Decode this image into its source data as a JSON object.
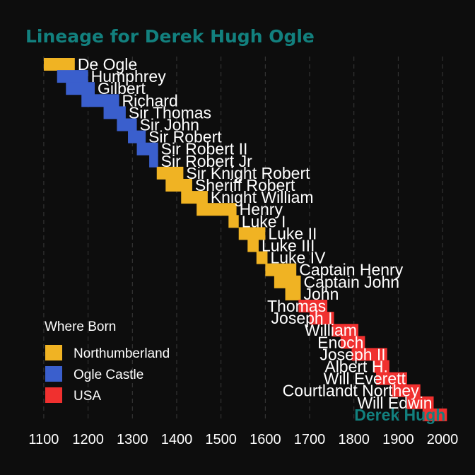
{
  "chart_data": {
    "type": "bar",
    "title": "Lineage for Derek Hugh Ogle",
    "xlabel": "",
    "ylabel": "",
    "xlim": [
      1065,
      2035
    ],
    "x_ticks": [
      1100,
      1200,
      1300,
      1400,
      1500,
      1600,
      1700,
      1800,
      1900,
      2000
    ],
    "grid": true,
    "legend": {
      "title": "Where Born",
      "position": "bottom-left",
      "entries": [
        {
          "label": "Northumberland",
          "color": "#f0b323"
        },
        {
          "label": "Ogle Castle",
          "color": "#3a5fcd"
        },
        {
          "label": "USA",
          "color": "#f0302f"
        }
      ]
    },
    "series": [
      {
        "name": "De Ogle",
        "born": "Northumberland",
        "start": 1100,
        "end": 1170
      },
      {
        "name": "Humphrey",
        "born": "Ogle Castle",
        "start": 1130,
        "end": 1200
      },
      {
        "name": "Gilbert",
        "born": "Ogle Castle",
        "start": 1150,
        "end": 1215
      },
      {
        "name": "Richard",
        "born": "Ogle Castle",
        "start": 1185,
        "end": 1270
      },
      {
        "name": "Sir Thomas",
        "born": "Ogle Castle",
        "start": 1235,
        "end": 1285
      },
      {
        "name": "Sir John",
        "born": "Ogle Castle",
        "start": 1265,
        "end": 1310
      },
      {
        "name": "Sir Robert",
        "born": "Ogle Castle",
        "start": 1290,
        "end": 1330
      },
      {
        "name": "Sir Robert II",
        "born": "Ogle Castle",
        "start": 1310,
        "end": 1358
      },
      {
        "name": "Sir Robert Jr",
        "born": "Ogle Castle",
        "start": 1338,
        "end": 1358
      },
      {
        "name": "Sir Knight Robert",
        "born": "Northumberland",
        "start": 1355,
        "end": 1415
      },
      {
        "name": "Sheriff Robert",
        "born": "Northumberland",
        "start": 1375,
        "end": 1435
      },
      {
        "name": "Knight William",
        "born": "Northumberland",
        "start": 1410,
        "end": 1470
      },
      {
        "name": "Henry",
        "born": "Northumberland",
        "start": 1445,
        "end": 1535
      },
      {
        "name": "Luke I",
        "born": "Northumberland",
        "start": 1517,
        "end": 1540
      },
      {
        "name": "Luke II",
        "born": "Northumberland",
        "start": 1540,
        "end": 1600
      },
      {
        "name": "Luke III",
        "born": "Northumberland",
        "start": 1560,
        "end": 1585
      },
      {
        "name": "Luke IV",
        "born": "Northumberland",
        "start": 1580,
        "end": 1605
      },
      {
        "name": "Captain Henry",
        "born": "Northumberland",
        "start": 1600,
        "end": 1670
      },
      {
        "name": "Captain John",
        "born": "Northumberland",
        "start": 1620,
        "end": 1680
      },
      {
        "name": "John",
        "born": "Northumberland",
        "start": 1645,
        "end": 1680
      },
      {
        "name": "Thomas",
        "born": "USA",
        "start": 1675,
        "end": 1740
      },
      {
        "name": "Joseph I",
        "born": "USA",
        "start": 1700,
        "end": 1755
      },
      {
        "name": "William",
        "born": "USA",
        "start": 1750,
        "end": 1810
      },
      {
        "name": "Enoch",
        "born": "USA",
        "start": 1770,
        "end": 1825
      },
      {
        "name": "Joseph II",
        "born": "USA",
        "start": 1795,
        "end": 1875
      },
      {
        "name": "Albert H.",
        "born": "USA",
        "start": 1845,
        "end": 1880
      },
      {
        "name": "Will Everett",
        "born": "USA",
        "start": 1850,
        "end": 1920
      },
      {
        "name": "Courtlandt Northey",
        "born": "USA",
        "start": 1885,
        "end": 1950
      },
      {
        "name": "Will Edwin",
        "born": "USA",
        "start": 1920,
        "end": 1980
      },
      {
        "name": "Derek Hugh",
        "born": "USA",
        "start": 1955,
        "end": 2010
      }
    ]
  }
}
